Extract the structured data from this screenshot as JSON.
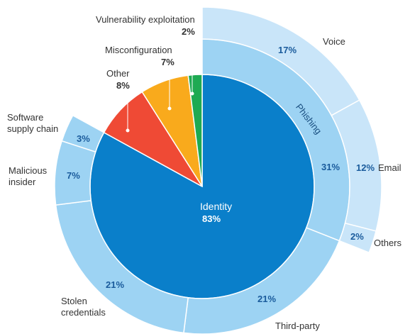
{
  "chart_data": {
    "type": "sunburst",
    "rings": [
      {
        "categories": [
          "Identity",
          "Other",
          "Misconfiguration",
          "Vulnerability exploitation"
        ],
        "values": [
          83,
          8,
          7,
          2
        ],
        "value_labels": [
          "83%",
          "8%",
          "7%",
          "2%"
        ],
        "colors": [
          "#0a7fca",
          "#ef4a35",
          "#f9aa1c",
          "#1eaa52"
        ]
      },
      {
        "categories": [
          "Phishing",
          "Third-party",
          "Stolen credentials",
          "Malicious insider",
          "Software supply chain"
        ],
        "values": [
          31,
          21,
          21,
          7,
          3
        ],
        "value_labels": [
          "31%",
          "21%",
          "21%",
          "7%",
          "3%"
        ],
        "color": "#9dd3f3"
      },
      {
        "categories": [
          "Voice",
          "Email",
          "Others"
        ],
        "values": [
          17,
          12,
          2
        ],
        "value_labels": [
          "17%",
          "12%",
          "2%"
        ],
        "color": "#c9e5f9"
      }
    ]
  }
}
